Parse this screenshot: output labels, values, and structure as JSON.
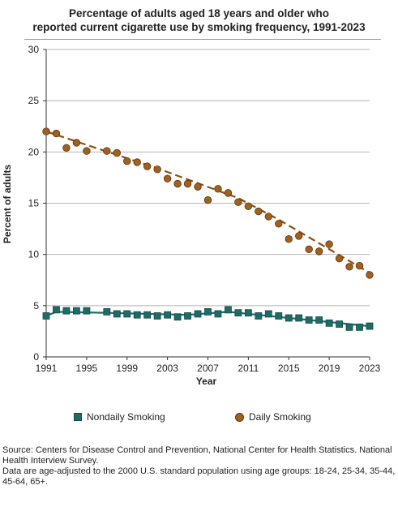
{
  "title_line1": "Percentage of adults aged 18 years and older who",
  "title_line2": "reported current cigarette use by smoking frequency, 1991-2023",
  "legend": {
    "nondaily": "Nondaily Smoking",
    "daily": "Daily Smoking"
  },
  "source": {
    "line1": "Source: Centers for Disease Control and Prevention, National Center for Health Statistics. National Health Interview Survey.",
    "line2": "Data are age-adjusted to the 2000 U.S. standard population using age groups: 18-24, 25-34, 35-44, 45-64, 65+."
  },
  "colors": {
    "nondaily": "#1f6b68",
    "nondaily_edge": "#134a48",
    "daily": "#a0611e",
    "daily_edge": "#5b3510",
    "trend_daily": "#8a4f12",
    "grid": "#b5b5b5"
  },
  "chart_data": {
    "type": "scatter",
    "xlabel": "Year",
    "ylabel": "Percent of adults",
    "xlim": [
      1991,
      2023
    ],
    "ylim": [
      0,
      30
    ],
    "xticks": [
      1991,
      1995,
      1999,
      2003,
      2007,
      2011,
      2015,
      2019,
      2023
    ],
    "yticks": [
      0,
      5,
      10,
      15,
      20,
      25,
      30
    ],
    "grid": true,
    "legend_position": "bottom",
    "series": [
      {
        "name": "Nondaily Smoking",
        "marker": "square",
        "trend": "solid",
        "points": [
          [
            1991,
            4.0
          ],
          [
            1992,
            4.6
          ],
          [
            1993,
            4.5
          ],
          [
            1994,
            4.5
          ],
          [
            1995,
            4.5
          ],
          [
            1997,
            4.4
          ],
          [
            1998,
            4.2
          ],
          [
            1999,
            4.2
          ],
          [
            2000,
            4.1
          ],
          [
            2001,
            4.1
          ],
          [
            2002,
            4.0
          ],
          [
            2003,
            4.1
          ],
          [
            2004,
            3.9
          ],
          [
            2005,
            4.0
          ],
          [
            2006,
            4.2
          ],
          [
            2007,
            4.4
          ],
          [
            2008,
            4.2
          ],
          [
            2009,
            4.6
          ],
          [
            2010,
            4.3
          ],
          [
            2011,
            4.3
          ],
          [
            2012,
            4.0
          ],
          [
            2013,
            4.2
          ],
          [
            2014,
            4.0
          ],
          [
            2015,
            3.8
          ],
          [
            2016,
            3.8
          ],
          [
            2017,
            3.6
          ],
          [
            2018,
            3.6
          ],
          [
            2019,
            3.3
          ],
          [
            2020,
            3.2
          ],
          [
            2021,
            2.9
          ],
          [
            2022,
            2.9
          ],
          [
            2023,
            3.0
          ]
        ],
        "trend_points": [
          [
            1991,
            4.0
          ],
          [
            1992,
            4.4
          ],
          [
            1997,
            4.3
          ],
          [
            2005,
            4.1
          ],
          [
            2009,
            4.4
          ],
          [
            2012,
            4.1
          ],
          [
            2017,
            3.6
          ],
          [
            2023,
            3.0
          ]
        ]
      },
      {
        "name": "Daily Smoking",
        "marker": "circle",
        "trend": "dashed",
        "points": [
          [
            1991,
            22.0
          ],
          [
            1992,
            21.8
          ],
          [
            1993,
            20.4
          ],
          [
            1994,
            20.9
          ],
          [
            1995,
            20.1
          ],
          [
            1997,
            20.1
          ],
          [
            1998,
            19.9
          ],
          [
            1999,
            19.1
          ],
          [
            2000,
            19.0
          ],
          [
            2001,
            18.6
          ],
          [
            2002,
            18.3
          ],
          [
            2003,
            17.4
          ],
          [
            2004,
            16.9
          ],
          [
            2005,
            16.9
          ],
          [
            2006,
            16.6
          ],
          [
            2007,
            15.3
          ],
          [
            2008,
            16.4
          ],
          [
            2009,
            16.0
          ],
          [
            2010,
            15.1
          ],
          [
            2011,
            14.7
          ],
          [
            2012,
            14.2
          ],
          [
            2013,
            13.7
          ],
          [
            2014,
            13.0
          ],
          [
            2015,
            11.5
          ],
          [
            2016,
            11.8
          ],
          [
            2017,
            10.5
          ],
          [
            2018,
            10.3
          ],
          [
            2019,
            11.0
          ],
          [
            2020,
            9.6
          ],
          [
            2021,
            8.8
          ],
          [
            2022,
            8.9
          ],
          [
            2023,
            8.0
          ]
        ],
        "trend_points": [
          [
            1991,
            22.0
          ],
          [
            2002,
            18.4
          ],
          [
            2010,
            15.5
          ],
          [
            2014,
            13.4
          ],
          [
            2023,
            8.2
          ]
        ]
      }
    ]
  }
}
